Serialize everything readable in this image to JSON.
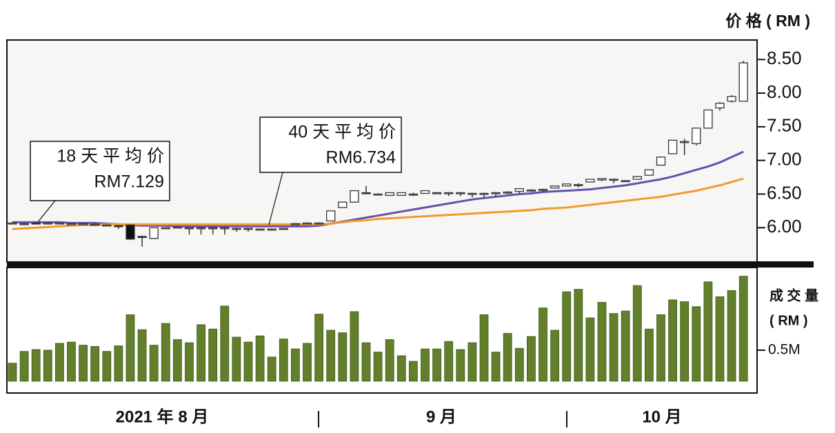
{
  "chart_data": [
    {
      "type": "candlestick",
      "y_label": "价 格 ( RM )",
      "ylim": [
        5.49,
        8.79
      ],
      "yticks": [
        {
          "value": 6,
          "label": "6.00"
        },
        {
          "value": 6.5,
          "label": "6.50"
        },
        {
          "value": 7,
          "label": "7.00"
        },
        {
          "value": 7.5,
          "label": "7.50"
        },
        {
          "value": 8,
          "label": "8.00"
        },
        {
          "value": 8.5,
          "label": "8.50"
        }
      ],
      "open": [
        6.07,
        6.06,
        6.07,
        6.06,
        6.07,
        6.06,
        6.06,
        6.05,
        6.04,
        6.03,
        6.04,
        5.87,
        5.84,
        6.0,
        6.01,
        6.0,
        6.0,
        6.0,
        6.0,
        5.99,
        5.99,
        5.98,
        5.98,
        5.99,
        6.05,
        6.06,
        6.07,
        6.1,
        6.3,
        6.38,
        6.52,
        6.5,
        6.48,
        6.48,
        6.5,
        6.51,
        6.52,
        6.52,
        6.52,
        6.51,
        6.51,
        6.52,
        6.53,
        6.54,
        6.56,
        6.57,
        6.59,
        6.62,
        6.64,
        6.68,
        6.71,
        6.72,
        6.7,
        6.72,
        6.78,
        6.93,
        7.1,
        7.28,
        7.25,
        7.48,
        7.78,
        7.88,
        7.88
      ],
      "high": [
        6.08,
        6.07,
        6.08,
        6.08,
        6.08,
        6.07,
        6.07,
        6.06,
        6.05,
        6.04,
        6.05,
        5.88,
        6.0,
        6.01,
        6.02,
        6.01,
        6.01,
        6.01,
        6.01,
        6.0,
        6.0,
        5.99,
        5.99,
        6.0,
        6.07,
        6.07,
        6.08,
        6.25,
        6.38,
        6.55,
        6.62,
        6.51,
        6.52,
        6.52,
        6.52,
        6.55,
        6.53,
        6.53,
        6.53,
        6.52,
        6.52,
        6.53,
        6.54,
        6.58,
        6.57,
        6.58,
        6.62,
        6.65,
        6.66,
        6.72,
        6.73,
        6.73,
        6.71,
        6.76,
        6.86,
        7.05,
        7.3,
        7.32,
        7.48,
        7.75,
        7.87,
        7.97,
        8.48
      ],
      "low": [
        6.06,
        6.05,
        6.05,
        6.06,
        6.06,
        6.05,
        6.05,
        6.04,
        6.03,
        5.98,
        5.82,
        5.72,
        5.84,
        5.99,
        5.99,
        5.9,
        5.9,
        5.9,
        5.9,
        5.94,
        5.94,
        5.97,
        5.97,
        5.98,
        6.04,
        6.05,
        6.05,
        6.1,
        6.3,
        6.38,
        6.5,
        6.49,
        6.48,
        6.48,
        6.47,
        6.51,
        6.5,
        6.47,
        6.47,
        6.45,
        6.45,
        6.47,
        6.5,
        6.51,
        6.53,
        6.54,
        6.59,
        6.62,
        6.6,
        6.68,
        6.69,
        6.66,
        6.69,
        6.72,
        6.78,
        6.93,
        7.1,
        7.08,
        7.22,
        7.48,
        7.74,
        7.86,
        7.88
      ],
      "close": [
        6.07,
        6.06,
        6.06,
        6.07,
        6.07,
        6.06,
        6.06,
        6.05,
        6.04,
        6.02,
        5.83,
        5.86,
        6.0,
        6.0,
        6.01,
        6.0,
        6.0,
        6.0,
        6.0,
        5.99,
        5.99,
        5.98,
        5.98,
        5.99,
        6.06,
        6.07,
        6.07,
        6.25,
        6.38,
        6.55,
        6.51,
        6.5,
        6.52,
        6.52,
        6.5,
        6.55,
        6.52,
        6.52,
        6.52,
        6.51,
        6.51,
        6.52,
        6.53,
        6.58,
        6.56,
        6.57,
        6.62,
        6.65,
        6.64,
        6.72,
        6.73,
        6.72,
        6.7,
        6.76,
        6.86,
        7.05,
        7.3,
        7.28,
        7.48,
        7.75,
        7.85,
        7.95,
        8.45
      ],
      "series": [
        {
          "color": "#6a4ea8",
          "values": [
            6.08,
            6.08,
            6.08,
            6.08,
            6.08,
            6.07,
            6.07,
            6.07,
            6.06,
            6.05,
            6.04,
            6.03,
            6.03,
            6.03,
            6.02,
            6.02,
            6.02,
            6.02,
            6.02,
            6.02,
            6.02,
            6.02,
            6.02,
            6.02,
            6.02,
            6.02,
            6.03,
            6.06,
            6.09,
            6.12,
            6.15,
            6.18,
            6.21,
            6.24,
            6.27,
            6.3,
            6.33,
            6.36,
            6.39,
            6.42,
            6.44,
            6.46,
            6.48,
            6.5,
            6.51,
            6.53,
            6.54,
            6.55,
            6.56,
            6.57,
            6.59,
            6.61,
            6.63,
            6.66,
            6.69,
            6.72,
            6.76,
            6.81,
            6.86,
            6.91,
            6.97,
            7.05,
            7.13
          ]
        },
        {
          "color": "#f39a2e",
          "values": [
            5.98,
            5.99,
            6.0,
            6.01,
            6.02,
            6.03,
            6.04,
            6.04,
            6.05,
            6.05,
            6.05,
            6.05,
            6.05,
            6.05,
            6.05,
            6.05,
            6.05,
            6.05,
            6.05,
            6.05,
            6.05,
            6.05,
            6.05,
            6.05,
            6.05,
            6.05,
            6.05,
            6.06,
            6.08,
            6.1,
            6.11,
            6.13,
            6.14,
            6.15,
            6.16,
            6.17,
            6.18,
            6.19,
            6.2,
            6.21,
            6.22,
            6.23,
            6.24,
            6.25,
            6.26,
            6.28,
            6.29,
            6.3,
            6.32,
            6.34,
            6.36,
            6.38,
            6.4,
            6.42,
            6.44,
            6.46,
            6.49,
            6.52,
            6.55,
            6.59,
            6.63,
            6.68,
            6.73
          ]
        }
      ],
      "annotations": [
        {
          "lines": [
            "18 天 平 均 价",
            "RM7.129"
          ]
        },
        {
          "lines": [
            "40 天 平 均 价",
            "RM6.734"
          ]
        }
      ]
    },
    {
      "type": "bar",
      "y_label": [
        "成 交 量",
        "( RM )"
      ],
      "color": "#627f2b",
      "ylim": [
        -0.19,
        1.83
      ],
      "yticks": [
        {
          "value": 0.5,
          "label": "0.5M"
        }
      ],
      "values": [
        0.29,
        0.48,
        0.51,
        0.5,
        0.61,
        0.63,
        0.58,
        0.56,
        0.48,
        0.57,
        1.07,
        0.83,
        0.58,
        0.93,
        0.67,
        0.62,
        0.91,
        0.84,
        1.21,
        0.71,
        0.63,
        0.73,
        0.39,
        0.68,
        0.52,
        0.61,
        1.08,
        0.82,
        0.78,
        1.12,
        0.62,
        0.47,
        0.67,
        0.41,
        0.32,
        0.52,
        0.52,
        0.64,
        0.51,
        0.62,
        1.07,
        0.47,
        0.77,
        0.53,
        0.72,
        1.18,
        0.82,
        1.44,
        1.48,
        1.02,
        1.27,
        1.09,
        1.13,
        1.54,
        0.84,
        1.07,
        1.31,
        1.28,
        1.2,
        1.6,
        1.36,
        1.46,
        1.69
      ],
      "x_labels": [
        "2021 年 8 月",
        "9 月",
        "10 月"
      ]
    }
  ]
}
